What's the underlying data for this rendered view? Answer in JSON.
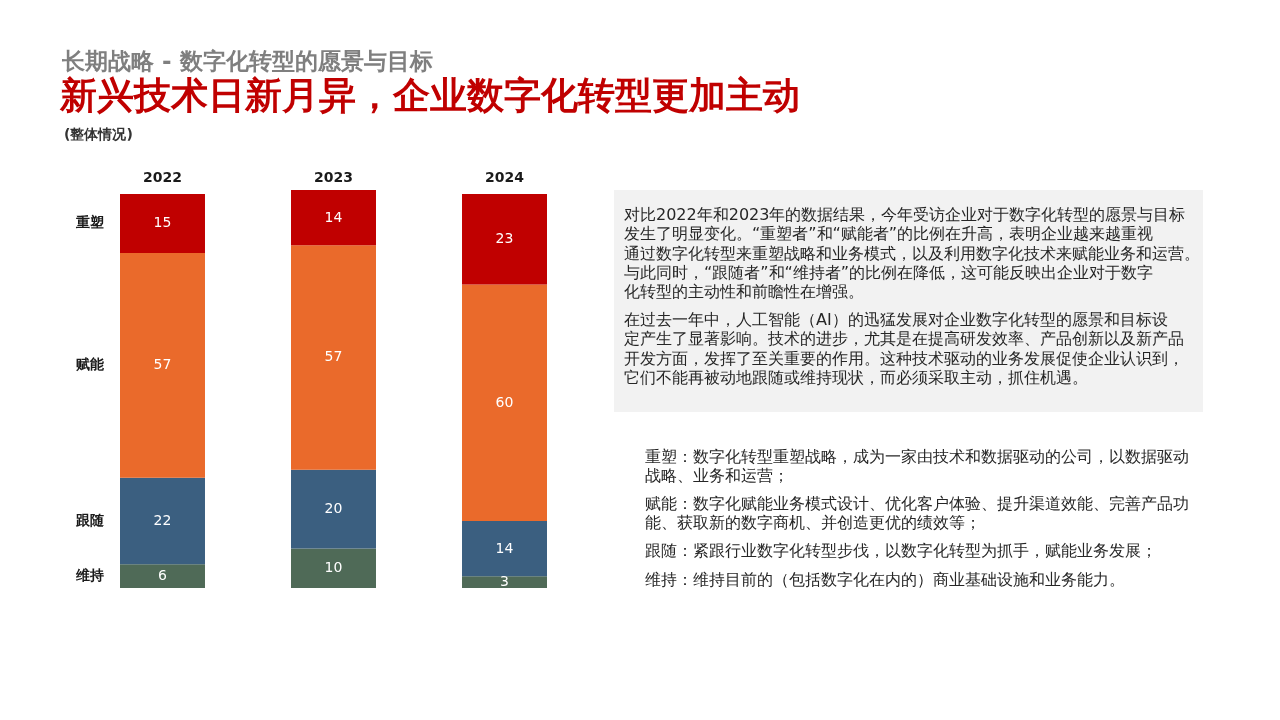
{
  "chart_data": {
    "type": "bar",
    "subtitle": "长期战略 - 数字化转型的愿景与目标",
    "title": "新兴技术日新月异，企业数字化转型更加主动",
    "categories": [
      "2022",
      "2023",
      "2024"
    ],
    "stacked": true,
    "data_labels": true,
    "tick_labels": "x",
    "series": [
      {
        "name": "维持",
        "color": "#4f6a57",
        "values": [
          6,
          10,
          3
        ]
      },
      {
        "name": "跟随",
        "color": "#3b5f80",
        "values": [
          22,
          20,
          14
        ]
      },
      {
        "name": "赋能",
        "color": "#ea6a2b",
        "values": [
          57,
          57,
          60
        ]
      },
      {
        "name": "重塑",
        "color": "#c00000",
        "values": [
          15,
          14,
          23
        ]
      }
    ],
    "annotations": [
      "(整体情况)",
      "对比2022年和2023年的数据结果，今年受访企业对于数字化转型的愿景与目标发生了明显变化。“重塑者”和“赋能者”的比例在升高，表明企业越来越重视通过数字化转型来重塑战略和业务模式，以及利用数字化技术来赋能业务和运营。与此同时，“跟随者”和“维持者”的比例在降低，这可能反映出企业对于数字化转型的主动性和前瞻性在增强。",
      "在过去一年中，人工智能（AI）的迅猛发展对企业数字化转型的愿景和目标设定产生了显著影响。技术的进步，尤其是在提高研发效率、产品创新以及新产品开发方面，发挥了至关重要的作用。这种技术驱动的业务发展促使企业认识到，它们不能再被动地跟随或维持现状，而必须采取主动，抓住机遇。",
      "重塑：数字化转型重塑战略，成为一家由技术和数据驱动的公司，以数据驱动战略、业务和运营；",
      "赋能：数字化赋能业务模式设计、优化客户体验、提升渠道效能、完善产品功能、获取新的数字商机、并创造更优的绩效等；",
      "跟随：紧跟行业数字化转型步伐，以数字化转型为抓手，赋能业务发展；",
      "维持：维持目前的（包括数字化在内的）商业基础设施和业务能力。"
    ]
  }
}
